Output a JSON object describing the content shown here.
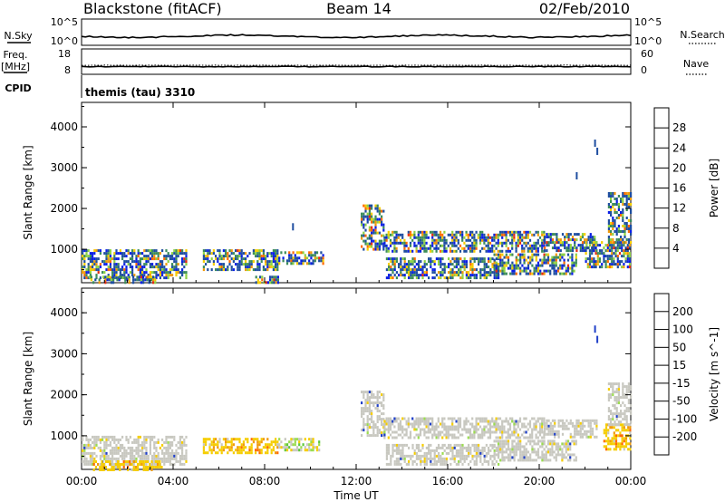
{
  "header": {
    "station": "Blackstone (fitACF)",
    "beam": "Beam 14",
    "date": "02/Feb/2010"
  },
  "aux_panels": {
    "nsky_label": "N.Sky",
    "nsearch_label": "N.Search",
    "nsky_ticks": [
      "10^5",
      "10^0"
    ],
    "freq_label_top": "Freq.",
    "freq_label_bottom": "[MHz]",
    "freq_ticks": [
      "18",
      "8"
    ],
    "nave_label": "Nave",
    "nave_ticks": [
      "60",
      "0"
    ],
    "cpid_label": "CPID",
    "cpid_value": "themis (tau) 3310"
  },
  "colors": {
    "frame": "#000000",
    "ground_scatter": "#c8c8c0",
    "trace": "#000000"
  },
  "chart_data": [
    {
      "type": "heatmap",
      "panel": "power",
      "ylabel": "Slant Range [km]",
      "xlabel": "",
      "x_ticks": [
        "00:00",
        "04:00",
        "08:00",
        "12:00",
        "16:00",
        "20:00",
        "00:00"
      ],
      "x_range_hours": [
        0,
        24
      ],
      "y_ticks": [
        "1000",
        "2000",
        "3000",
        "4000"
      ],
      "ylim": [
        180,
        4600
      ],
      "colorbar": {
        "label": "Power [dB]",
        "ticks": [
          "4",
          "8",
          "12",
          "16",
          "20",
          "24",
          "28"
        ],
        "colors": [
          "#0a1ee6",
          "#1f4ea0",
          "#3c8c5a",
          "#8ed244",
          "#f5cd00",
          "#f09a0a",
          "#ff6a00",
          "#e62a10"
        ]
      },
      "echo_regions": [
        {
          "t0": 0.0,
          "t1": 4.6,
          "r0": 300,
          "r1": 1000
        },
        {
          "t0": 0.3,
          "t1": 3.2,
          "r0": 200,
          "r1": 350
        },
        {
          "t0": 5.3,
          "t1": 8.6,
          "r0": 500,
          "r1": 1000
        },
        {
          "t0": 7.5,
          "t1": 8.6,
          "r0": 200,
          "r1": 350
        },
        {
          "t0": 8.6,
          "t1": 10.6,
          "r0": 650,
          "r1": 950
        },
        {
          "t0": 12.2,
          "t1": 13.2,
          "r0": 1000,
          "r1": 2100
        },
        {
          "t0": 13.2,
          "t1": 20.2,
          "r0": 950,
          "r1": 1450
        },
        {
          "t0": 13.3,
          "t1": 18.2,
          "r0": 300,
          "r1": 800
        },
        {
          "t0": 18.0,
          "t1": 21.6,
          "r0": 400,
          "r1": 900
        },
        {
          "t0": 20.2,
          "t1": 22.5,
          "r0": 1000,
          "r1": 1400
        },
        {
          "t0": 22.0,
          "t1": 24.0,
          "r0": 600,
          "r1": 1200
        },
        {
          "t0": 23.0,
          "t1": 24.0,
          "r0": 1200,
          "r1": 2400
        }
      ],
      "isolated_echoes": [
        {
          "t": 9.2,
          "r": 1550
        },
        {
          "t": 22.4,
          "r": 3600
        },
        {
          "t": 22.5,
          "r": 3400
        },
        {
          "t": 21.6,
          "r": 2800
        }
      ]
    },
    {
      "type": "heatmap",
      "panel": "velocity",
      "ylabel": "Slant Range [km]",
      "xlabel": "Time UT",
      "x_ticks": [
        "00:00",
        "04:00",
        "08:00",
        "12:00",
        "16:00",
        "20:00",
        "00:00"
      ],
      "x_range_hours": [
        0,
        24
      ],
      "y_ticks": [
        "1000",
        "2000",
        "3000",
        "4000"
      ],
      "ylim": [
        180,
        4600
      ],
      "colorbar": {
        "label": "Velocity [m s^-1]",
        "ticks": [
          "200",
          "100",
          "50",
          "15",
          "-15",
          "-50",
          "-100",
          "-200"
        ],
        "colors": [
          "#2040c8",
          "#2a8c50",
          "#5cc83c",
          "#9bdc50",
          "#c8c8c0",
          "#f5cd00",
          "#f09a0a",
          "#ff6a00",
          "#e62a10"
        ]
      },
      "echo_regions": [
        {
          "t0": 0.0,
          "t1": 4.6,
          "r0": 300,
          "r1": 1000,
          "kind": "ground"
        },
        {
          "t0": 0.5,
          "t1": 3.5,
          "r0": 200,
          "r1": 400,
          "kind": "orange"
        },
        {
          "t0": 5.3,
          "t1": 8.6,
          "r0": 600,
          "r1": 950,
          "kind": "orange"
        },
        {
          "t0": 8.6,
          "t1": 10.4,
          "r0": 650,
          "r1": 950,
          "kind": "mixed"
        },
        {
          "t0": 12.2,
          "t1": 13.2,
          "r0": 1000,
          "r1": 2100,
          "kind": "ground"
        },
        {
          "t0": 13.2,
          "t1": 20.2,
          "r0": 950,
          "r1": 1450,
          "kind": "ground"
        },
        {
          "t0": 13.3,
          "t1": 18.2,
          "r0": 300,
          "r1": 800,
          "kind": "ground"
        },
        {
          "t0": 18.0,
          "t1": 21.6,
          "r0": 400,
          "r1": 900,
          "kind": "ground"
        },
        {
          "t0": 20.2,
          "t1": 22.5,
          "r0": 1000,
          "r1": 1400,
          "kind": "ground"
        },
        {
          "t0": 22.8,
          "t1": 24.0,
          "r0": 700,
          "r1": 1300,
          "kind": "orange"
        },
        {
          "t0": 23.0,
          "t1": 24.0,
          "r0": 1300,
          "r1": 2300,
          "kind": "ground"
        }
      ],
      "isolated_echoes": [
        {
          "t": 22.4,
          "r": 3600
        },
        {
          "t": 22.5,
          "r": 3350
        }
      ]
    }
  ]
}
